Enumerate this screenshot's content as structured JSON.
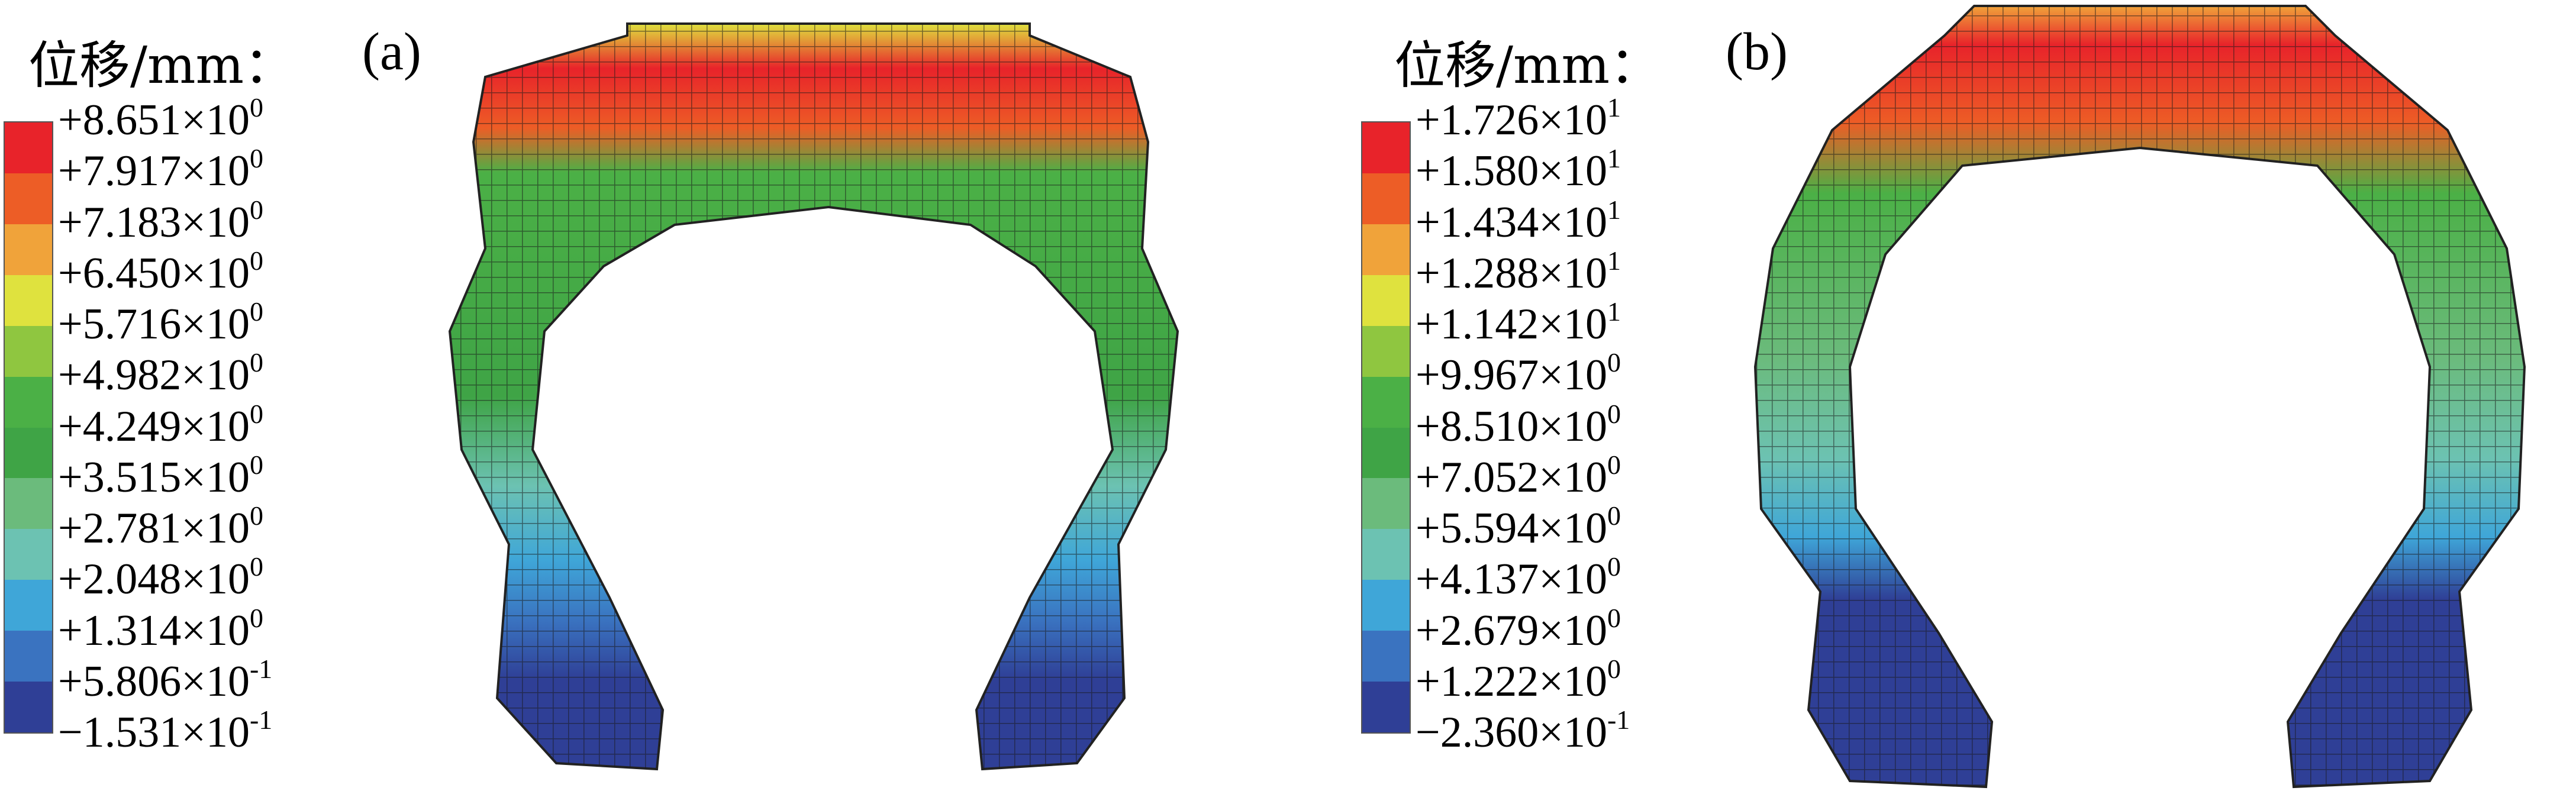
{
  "panels": [
    {
      "label": "(a)",
      "legend_title": "位移/mm：",
      "ticks": [
        {
          "mantissa": "+8.651",
          "exp": "0"
        },
        {
          "mantissa": "+7.917",
          "exp": "0"
        },
        {
          "mantissa": "+7.183",
          "exp": "0"
        },
        {
          "mantissa": "+6.450",
          "exp": "0"
        },
        {
          "mantissa": "+5.716",
          "exp": "0"
        },
        {
          "mantissa": "+4.982",
          "exp": "0"
        },
        {
          "mantissa": "+4.249",
          "exp": "0"
        },
        {
          "mantissa": "+3.515",
          "exp": "0"
        },
        {
          "mantissa": "+2.781",
          "exp": "0"
        },
        {
          "mantissa": "+2.048",
          "exp": "0"
        },
        {
          "mantissa": "+1.314",
          "exp": "0"
        },
        {
          "mantissa": "+5.806",
          "exp": "-1"
        },
        {
          "mantissa": "−1.531",
          "exp": "-1"
        }
      ],
      "times_sign": "×10"
    },
    {
      "label": "(b)",
      "legend_title": "位移/mm：",
      "ticks": [
        {
          "mantissa": "+1.726",
          "exp": "1"
        },
        {
          "mantissa": "+1.580",
          "exp": "1"
        },
        {
          "mantissa": "+1.434",
          "exp": "1"
        },
        {
          "mantissa": "+1.288",
          "exp": "1"
        },
        {
          "mantissa": "+1.142",
          "exp": "1"
        },
        {
          "mantissa": "+9.967",
          "exp": "0"
        },
        {
          "mantissa": "+8.510",
          "exp": "0"
        },
        {
          "mantissa": "+7.052",
          "exp": "0"
        },
        {
          "mantissa": "+5.594",
          "exp": "0"
        },
        {
          "mantissa": "+4.137",
          "exp": "0"
        },
        {
          "mantissa": "+2.679",
          "exp": "0"
        },
        {
          "mantissa": "+1.222",
          "exp": "0"
        },
        {
          "mantissa": "−2.360",
          "exp": "-1"
        }
      ],
      "times_sign": "×10"
    }
  ],
  "colormap": [
    "#e8232a",
    "#ed5d26",
    "#f0a33a",
    "#dfe23e",
    "#8fc640",
    "#4bb046",
    "#3fa446",
    "#6bbb7c",
    "#6cc2b2",
    "#3fa6d8",
    "#3a73c0",
    "#2f3f96"
  ]
}
